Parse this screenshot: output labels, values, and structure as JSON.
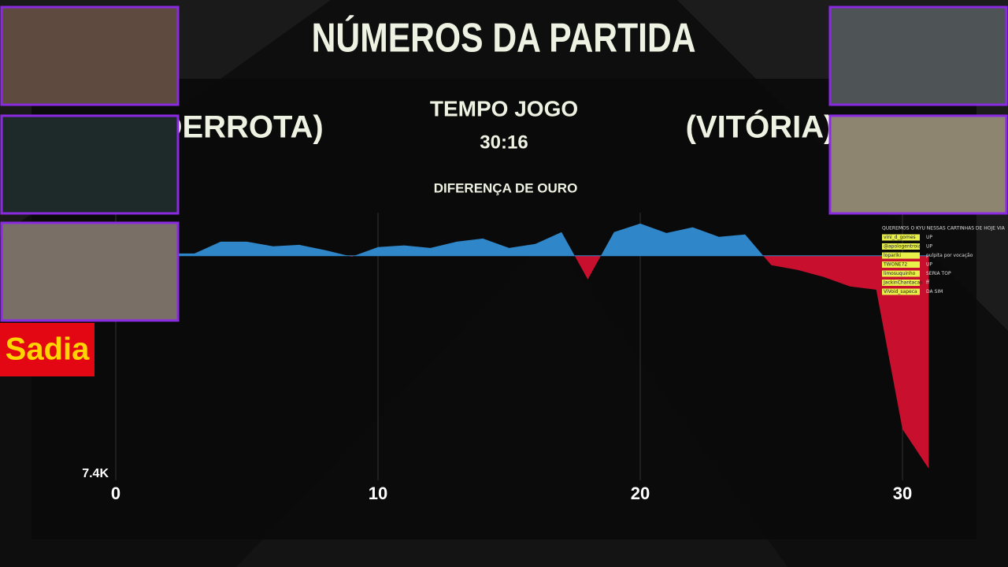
{
  "header": {
    "title": "NÚMEROS DA PARTIDA",
    "time_label": "TEMPO JOGO",
    "time_value": "30:16",
    "left_result": "(DERROTA)",
    "right_result": "(VITÓRIA)"
  },
  "sponsor": "Sadia",
  "chat": [
    {
      "user": "",
      "message": "QUEREMOS O KYU NESSAS CARTINHAS DE HOJE VIA"
    },
    {
      "user": "vini_d_gomes",
      "message": "UP"
    },
    {
      "user": "@apologentroia",
      "message": "UP"
    },
    {
      "user": "lopariki",
      "message": "pulpita por vocação"
    },
    {
      "user": "TWONE72",
      "message": "UP"
    },
    {
      "user": "limosuquinho",
      "message": "SERIA TOP"
    },
    {
      "user": "JackinChantacas",
      "message": "ff"
    },
    {
      "user": "ViVoid_sapeca",
      "message": "DA SIM"
    }
  ],
  "chart_data": {
    "type": "area",
    "title": "DIFERENÇA DE OURO",
    "x": [
      2.4,
      3,
      4,
      5,
      6,
      7,
      8,
      9,
      10,
      11,
      12,
      13,
      14,
      15,
      16,
      17,
      18,
      19,
      20,
      21,
      22,
      23,
      24,
      25,
      26,
      27,
      28,
      29,
      30,
      31
    ],
    "values": [
      80,
      80,
      490,
      490,
      330,
      380,
      190,
      -30,
      300,
      360,
      270,
      490,
      600,
      270,
      410,
      820,
      -820,
      820,
      1120,
      790,
      990,
      660,
      740,
      -330,
      -490,
      -740,
      -1070,
      -1180,
      -6030,
      -7400
    ],
    "positive_color": "#2f86c8",
    "negative_color": "#c8102e",
    "xlim": [
      0,
      31
    ],
    "xticks": [
      0,
      10,
      20,
      30
    ],
    "ylim": [
      -7400,
      1500
    ],
    "yticks": [
      {
        "value": -7400,
        "label": "7.4K"
      }
    ],
    "grid": true
  }
}
